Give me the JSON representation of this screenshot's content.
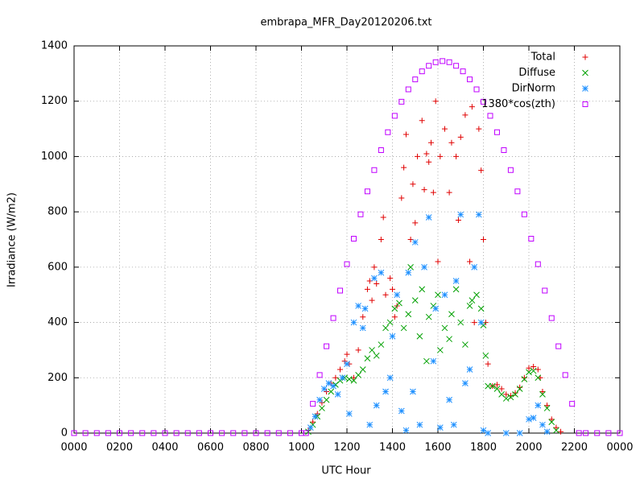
{
  "chart_data": {
    "type": "scatter",
    "title": "embrapa_MFR_Day20120206.txt",
    "xlabel": "UTC Hour",
    "ylabel": "Irradiance (W/m2)",
    "xlim": [
      0,
      24
    ],
    "ylim": [
      0,
      1400
    ],
    "xticks": [
      {
        "value": 0,
        "label": "0000"
      },
      {
        "value": 2,
        "label": "0200"
      },
      {
        "value": 4,
        "label": "0400"
      },
      {
        "value": 6,
        "label": "0600"
      },
      {
        "value": 8,
        "label": "0800"
      },
      {
        "value": 10,
        "label": "1000"
      },
      {
        "value": 12,
        "label": "1200"
      },
      {
        "value": 14,
        "label": "1400"
      },
      {
        "value": 16,
        "label": "1600"
      },
      {
        "value": 18,
        "label": "1800"
      },
      {
        "value": 20,
        "label": "2000"
      },
      {
        "value": 22,
        "label": "2200"
      },
      {
        "value": 24,
        "label": "0000"
      }
    ],
    "yticks": [
      0,
      200,
      400,
      600,
      800,
      1000,
      1200,
      1400
    ],
    "grid": true,
    "legend": "top-right",
    "series": [
      {
        "name": "Total",
        "color": "#e00000",
        "marker": "plus",
        "x": [
          10.3,
          10.5,
          10.7,
          10.9,
          11.1,
          11.3,
          11.5,
          11.7,
          11.9,
          12.0,
          12.1,
          12.3,
          12.5,
          12.7,
          12.9,
          13.0,
          13.1,
          13.2,
          13.3,
          13.5,
          13.6,
          13.7,
          13.9,
          14.0,
          14.1,
          14.2,
          14.4,
          14.5,
          14.6,
          14.8,
          14.9,
          15.0,
          15.1,
          15.3,
          15.4,
          15.5,
          15.6,
          15.7,
          15.8,
          15.9,
          16.0,
          16.1,
          16.3,
          16.5,
          16.6,
          16.8,
          16.9,
          17.0,
          17.2,
          17.4,
          17.5,
          17.6,
          17.8,
          17.9,
          18.0,
          18.1,
          18.2,
          18.4,
          18.6,
          18.8,
          19.0,
          19.2,
          19.4,
          19.6,
          19.8,
          20.0,
          20.2,
          20.4,
          20.5,
          20.6,
          20.8,
          21.0,
          21.2,
          21.4
        ],
        "values": [
          10,
          40,
          70,
          110,
          150,
          180,
          200,
          230,
          260,
          285,
          250,
          200,
          300,
          420,
          520,
          550,
          480,
          600,
          540,
          700,
          780,
          500,
          560,
          520,
          420,
          460,
          850,
          960,
          1080,
          700,
          900,
          760,
          1000,
          1130,
          880,
          1010,
          980,
          1050,
          870,
          1200,
          620,
          1000,
          1100,
          870,
          1050,
          1000,
          770,
          1070,
          1150,
          620,
          1180,
          400,
          1100,
          950,
          700,
          400,
          250,
          170,
          175,
          160,
          140,
          135,
          145,
          165,
          200,
          235,
          240,
          230,
          200,
          150,
          100,
          50,
          20,
          5
        ]
      },
      {
        "name": "Diffuse",
        "color": "#00a000",
        "marker": "cross",
        "x": [
          10.3,
          10.5,
          10.7,
          10.9,
          11.1,
          11.3,
          11.5,
          11.7,
          11.9,
          12.1,
          12.3,
          12.5,
          12.7,
          12.9,
          13.1,
          13.3,
          13.5,
          13.7,
          13.9,
          14.1,
          14.3,
          14.5,
          14.7,
          14.8,
          15.0,
          15.2,
          15.3,
          15.5,
          15.6,
          15.8,
          16.0,
          16.1,
          16.3,
          16.5,
          16.6,
          16.8,
          17.0,
          17.2,
          17.4,
          17.5,
          17.7,
          17.9,
          18.0,
          18.1,
          18.2,
          18.4,
          18.6,
          18.8,
          19.0,
          19.2,
          19.4,
          19.6,
          19.8,
          20.0,
          20.2,
          20.4,
          20.6,
          20.8,
          21.0,
          21.2
        ],
        "values": [
          5,
          30,
          60,
          90,
          120,
          150,
          175,
          190,
          200,
          195,
          190,
          210,
          230,
          270,
          300,
          280,
          320,
          380,
          400,
          450,
          470,
          380,
          430,
          600,
          480,
          350,
          520,
          260,
          420,
          460,
          500,
          300,
          380,
          340,
          430,
          520,
          400,
          320,
          460,
          480,
          500,
          450,
          390,
          280,
          170,
          170,
          160,
          140,
          125,
          130,
          140,
          160,
          195,
          220,
          225,
          200,
          140,
          90,
          40,
          10
        ]
      },
      {
        "name": "DirNorm",
        "color": "#1e90ff",
        "marker": "star",
        "x": [
          10.4,
          10.6,
          10.8,
          11.0,
          11.2,
          11.4,
          11.6,
          11.8,
          12.0,
          12.1,
          12.3,
          12.5,
          12.7,
          12.8,
          13.0,
          13.2,
          13.3,
          13.5,
          13.7,
          13.9,
          14.0,
          14.2,
          14.4,
          14.6,
          14.7,
          14.9,
          15.0,
          15.2,
          15.4,
          15.6,
          15.8,
          15.9,
          16.1,
          16.3,
          16.5,
          16.7,
          16.8,
          17.0,
          17.2,
          17.4,
          17.6,
          17.8,
          17.9,
          18.0,
          18.2,
          19.0,
          19.6,
          20.0,
          20.2,
          20.4,
          20.6,
          20.8
        ],
        "values": [
          20,
          60,
          120,
          160,
          180,
          170,
          140,
          200,
          250,
          70,
          400,
          460,
          380,
          450,
          30,
          560,
          100,
          580,
          150,
          200,
          350,
          500,
          80,
          10,
          580,
          150,
          690,
          30,
          600,
          780,
          260,
          450,
          20,
          500,
          120,
          30,
          550,
          790,
          180,
          230,
          600,
          790,
          400,
          10,
          0,
          0,
          0,
          50,
          55,
          100,
          30,
          5
        ]
      },
      {
        "name": "1380*cos(zth)",
        "color": "#c000ff",
        "marker": "square",
        "x": [
          0,
          0.5,
          1,
          1.5,
          2,
          2.5,
          3,
          3.5,
          4,
          4.5,
          5,
          5.5,
          6,
          6.5,
          7,
          7.5,
          8,
          8.5,
          9,
          9.5,
          10,
          10.2,
          10.5,
          10.8,
          11.1,
          11.4,
          11.7,
          12.0,
          12.3,
          12.6,
          12.9,
          13.2,
          13.5,
          13.8,
          14.1,
          14.4,
          14.7,
          15.0,
          15.3,
          15.6,
          15.9,
          16.2,
          16.5,
          16.8,
          17.1,
          17.4,
          17.7,
          18.0,
          18.3,
          18.6,
          18.9,
          19.2,
          19.5,
          19.8,
          20.1,
          20.4,
          20.7,
          21.0,
          21.3,
          21.6,
          21.9,
          22.2,
          22.5,
          23,
          23.5,
          24
        ],
        "values": [
          0,
          0,
          0,
          0,
          0,
          0,
          0,
          0,
          0,
          0,
          0,
          0,
          0,
          0,
          0,
          0,
          0,
          0,
          0,
          0,
          0,
          0,
          106,
          210,
          314,
          416,
          515,
          611,
          703,
          791,
          874,
          951,
          1023,
          1088,
          1147,
          1198,
          1243,
          1279,
          1308,
          1328,
          1341,
          1345,
          1341,
          1328,
          1308,
          1279,
          1243,
          1198,
          1147,
          1088,
          1023,
          951,
          874,
          791,
          703,
          611,
          515,
          416,
          314,
          210,
          106,
          0,
          0,
          0,
          0,
          0
        ]
      }
    ]
  }
}
